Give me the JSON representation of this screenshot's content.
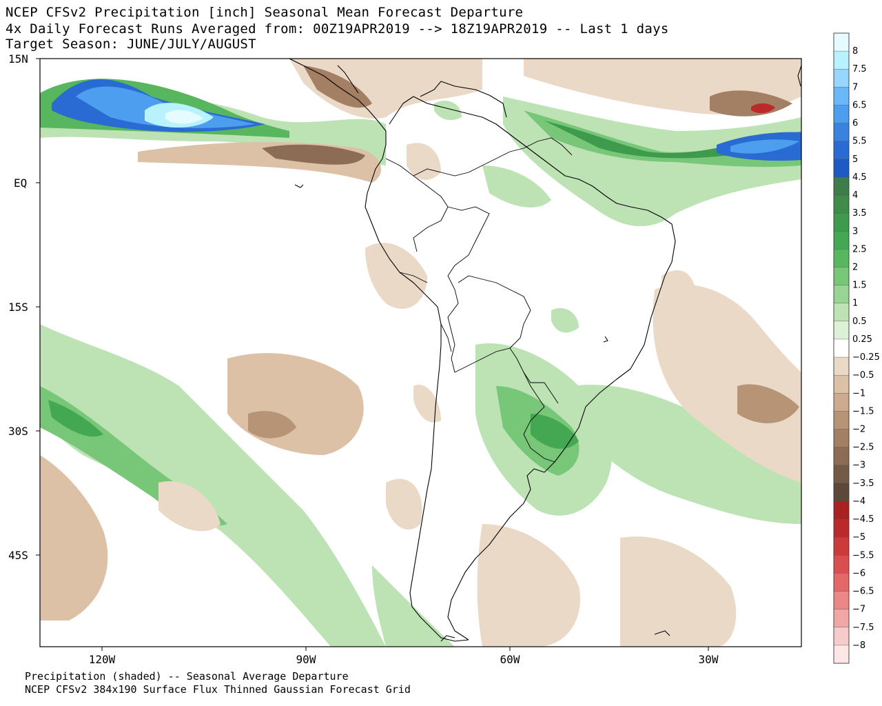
{
  "title": {
    "line1": "NCEP CFSv2 Precipitation [inch] Seasonal Mean Forecast Departure",
    "line2": "4x Daily Forecast Runs Averaged from: 00Z19APR2019 --> 18Z19APR2019 -- Last 1 days",
    "line3": "Target Season: JUNE/JULY/AUGUST"
  },
  "footer": {
    "line1": "Precipitation (shaded) -- Seasonal Average Departure",
    "line2": "NCEP CFSv2 384x190 Surface Flux Thinned Gaussian Forecast Grid"
  },
  "axes": {
    "lat_labels": [
      "15N",
      "EQ",
      "15S",
      "30S",
      "45S"
    ],
    "lon_labels": [
      "120W",
      "90W",
      "60W",
      "30W"
    ]
  },
  "colorbar": {
    "labels": [
      "8",
      "7.5",
      "7",
      "6.5",
      "6",
      "5.5",
      "5",
      "4.5",
      "4",
      "3.5",
      "3",
      "2.5",
      "2",
      "1.5",
      "1",
      "0.5",
      "0.25",
      "−0.25",
      "−0.5",
      "−1",
      "−1.5",
      "−2",
      "−2.5",
      "−3",
      "−3.5",
      "−4",
      "−4.5",
      "−5",
      "−5.5",
      "−6",
      "−6.5",
      "−7",
      "−7.5",
      "−8"
    ],
    "colors": [
      "#e6fbff",
      "#b8f2ff",
      "#96d6ff",
      "#6ab8f7",
      "#4d9eee",
      "#3a82e0",
      "#2a6bd3",
      "#1d5ac4",
      "#3e7c4a",
      "#3f8b4a",
      "#3e9a4c",
      "#44a852",
      "#58b65e",
      "#78c677",
      "#98d493",
      "#bde3b5",
      "#ddf1d6",
      "#ffffff",
      "#ead9c6",
      "#dcc1a6",
      "#ccab8e",
      "#b89477",
      "#a37f64",
      "#8c6c55",
      "#735a47",
      "#5c4838",
      "#a82222",
      "#bb2a2a",
      "#cc3a3a",
      "#d94f4f",
      "#e36868",
      "#eb8787",
      "#f2a7a7",
      "#f8cbcb",
      "#fde6e6"
    ]
  }
}
